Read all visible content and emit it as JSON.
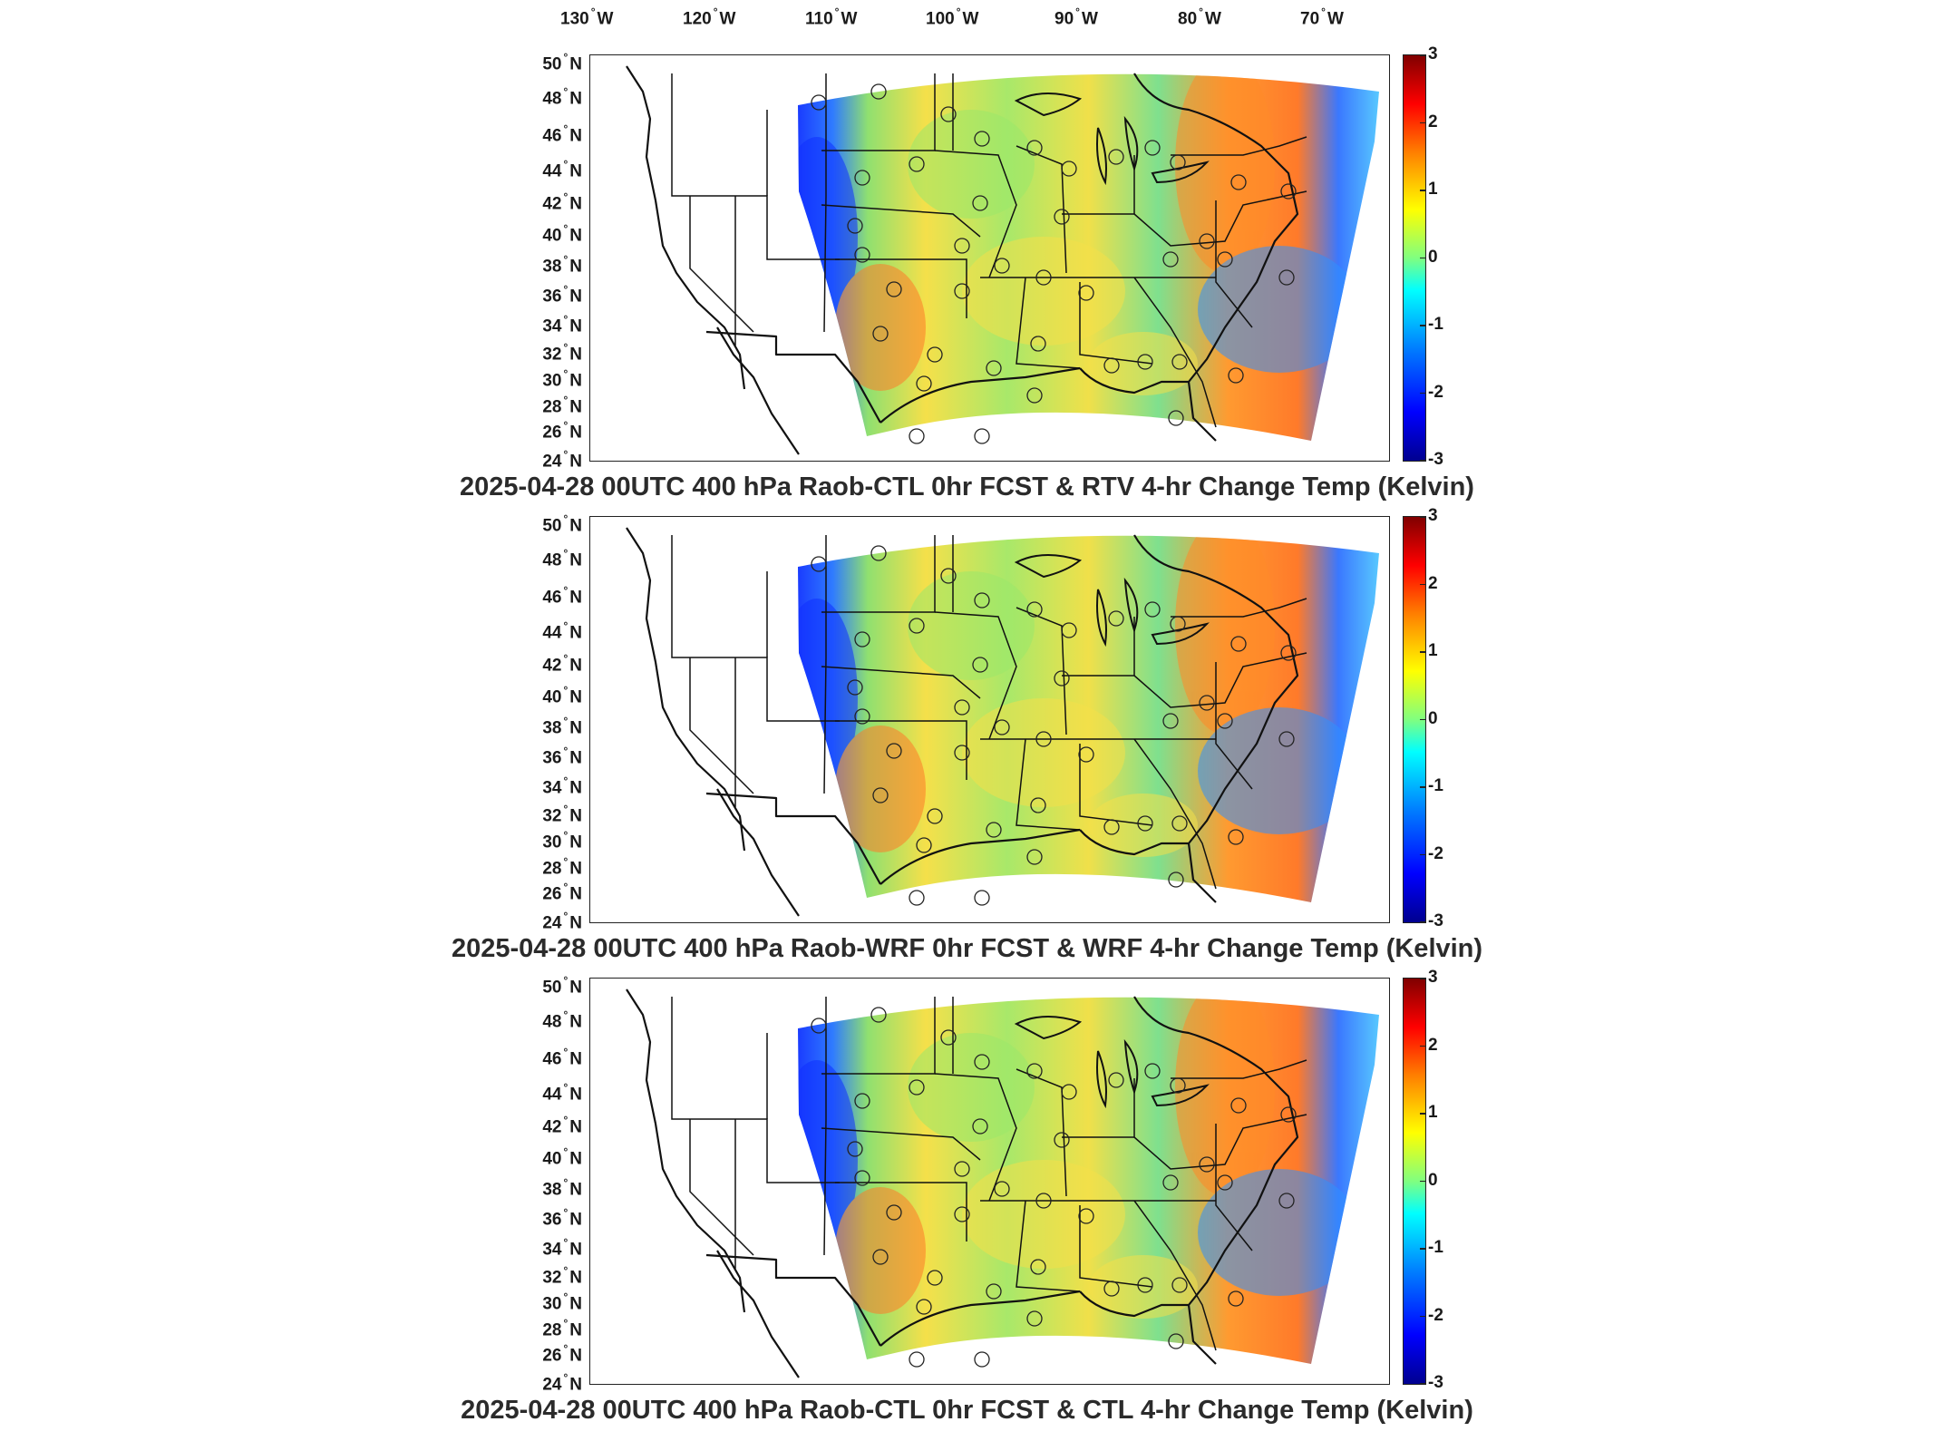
{
  "lon_labels": [
    {
      "deg": "130",
      "hem": "W"
    },
    {
      "deg": "120",
      "hem": "W"
    },
    {
      "deg": "110",
      "hem": "W"
    },
    {
      "deg": "100",
      "hem": "W"
    },
    {
      "deg": "90",
      "hem": "W"
    },
    {
      "deg": "80",
      "hem": "W"
    },
    {
      "deg": "70",
      "hem": "W"
    }
  ],
  "lat_labels": [
    {
      "deg": "50",
      "hem": "N"
    },
    {
      "deg": "48",
      "hem": "N"
    },
    {
      "deg": "46",
      "hem": "N"
    },
    {
      "deg": "44",
      "hem": "N"
    },
    {
      "deg": "42",
      "hem": "N"
    },
    {
      "deg": "40",
      "hem": "N"
    },
    {
      "deg": "38",
      "hem": "N"
    },
    {
      "deg": "36",
      "hem": "N"
    },
    {
      "deg": "34",
      "hem": "N"
    },
    {
      "deg": "32",
      "hem": "N"
    },
    {
      "deg": "30",
      "hem": "N"
    },
    {
      "deg": "28",
      "hem": "N"
    },
    {
      "deg": "26",
      "hem": "N"
    },
    {
      "deg": "24",
      "hem": "N"
    }
  ],
  "colorbar": {
    "ticks": [
      "3",
      "2",
      "1",
      "0",
      "-1",
      "-2",
      "-3"
    ],
    "min": -3,
    "max": 3,
    "colormap": [
      "#00008f",
      "#0000ff",
      "#0080ff",
      "#00ffff",
      "#80ff80",
      "#ffff00",
      "#ff8000",
      "#ff0000",
      "#800000"
    ]
  },
  "panels": [
    {
      "title": "2025-04-28 00UTC 400 hPa Raob-CTL 0hr FCST & RTV 4-hr Change Temp (Kelvin)"
    },
    {
      "title": "2025-04-28 00UTC 400 hPa Raob-WRF 0hr FCST & WRF 4-hr Change Temp (Kelvin)"
    },
    {
      "title": "2025-04-28 00UTC 400 hPa Raob-CTL 0hr FCST & CTL 4-hr Change Temp (Kelvin)"
    }
  ],
  "colors": {
    "field_base": "#7ee08a",
    "border": "#111111"
  }
}
